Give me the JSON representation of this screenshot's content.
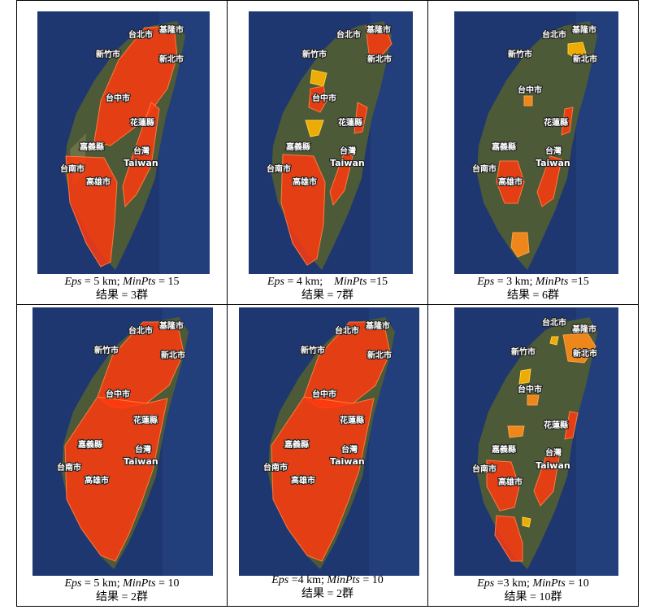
{
  "map_labels": {
    "keelung": "基隆市",
    "taipei": "台北市",
    "new_taipei": "新北市",
    "hsinchu": "新竹市",
    "taichung": "台中市",
    "hualien": "花蓮縣",
    "chiayi": "嘉義縣",
    "taitung_cn": "台灣",
    "taiwan": "Taiwan",
    "tainan": "台南市",
    "kaohsiung": "高雄市"
  },
  "colors": {
    "cluster_red": "#ff3a0f",
    "cluster_orange": "#ff8c1a",
    "cluster_yellow": "#ffb400",
    "sea": "#1e3770",
    "land": "#4d5a38"
  },
  "panels": [
    {
      "eps_label": "Eps",
      "eps_eq": " = 5 km; ",
      "minpts_label": "MinPts",
      "minpts_eq": " = 15",
      "result_label": "结果",
      "result_value": " = 3群"
    },
    {
      "eps_label": "Eps",
      "eps_eq": " = 4 km;    ",
      "minpts_label": "MinPts",
      "minpts_eq": " =15",
      "result_label": "结果",
      "result_value": " = 7群"
    },
    {
      "eps_label": "Eps",
      "eps_eq": " = 3 km; ",
      "minpts_label": "MinPts",
      "minpts_eq": " =15",
      "result_label": "结果",
      "result_value": " = 6群"
    },
    {
      "eps_label": "Eps",
      "eps_eq": " = 5 km; ",
      "minpts_label": "MinPts",
      "minpts_eq": " = 10",
      "result_label": "结果",
      "result_value": " = 2群"
    },
    {
      "eps_label": "Eps",
      "eps_eq": " =4 km; ",
      "minpts_label": "MinPts",
      "minpts_eq": " = 10",
      "result_label": "结果",
      "result_value": " = 2群"
    },
    {
      "eps_label": "Eps",
      "eps_eq": " =3 km; ",
      "minpts_label": "MinPts",
      "minpts_eq": " = 10",
      "result_label": "结果",
      "result_value": " = 10群"
    }
  ]
}
